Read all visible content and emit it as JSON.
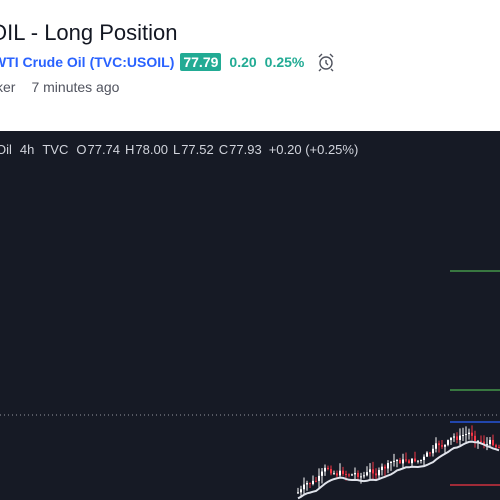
{
  "header": {
    "title": "OIL - Long Position",
    "symbol_name": "WTI Crude Oil",
    "symbol_code": "TVC:USOIL",
    "price": "77.79",
    "change": "0.20",
    "change_pct": "0.25%",
    "author": "ker",
    "posted": "7 minutes ago"
  },
  "chart": {
    "symbol": "Oil",
    "interval": "4h",
    "source": "TVC",
    "open_label": "O",
    "open": "77.74",
    "high_label": "H",
    "high": "78.00",
    "low_label": "L",
    "low": "77.52",
    "close_label": "C",
    "close": "77.93",
    "delta": "+0.20 (+0.25%)"
  },
  "colors": {
    "background": "#161a25",
    "up": "#ffffff",
    "down": "#f23645",
    "target": "#4caf50",
    "entry": "#2962ff",
    "stop": "#f23645",
    "accent": "#22ab94"
  }
}
